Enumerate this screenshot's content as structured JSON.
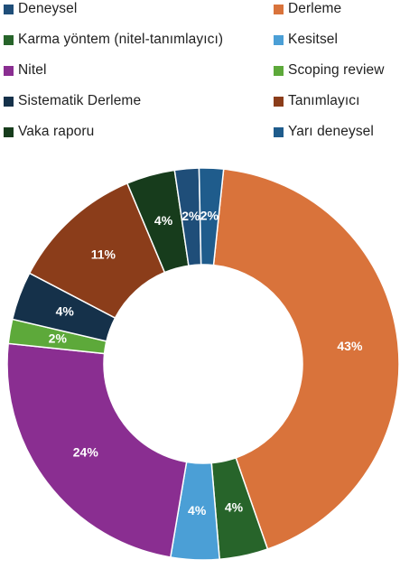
{
  "chart_data": {
    "type": "pie",
    "style": "donut",
    "series": [
      {
        "name": "Deneysel",
        "value": 2,
        "label": "2%",
        "color": "#1f4e79"
      },
      {
        "name": "Derleme",
        "value": 43,
        "label": "43%",
        "color": "#d9733b"
      },
      {
        "name": "Karma yöntem (nitel-tanımlayıcı)",
        "value": 4,
        "label": "4%",
        "color": "#27642a"
      },
      {
        "name": "Kesitsel",
        "value": 4,
        "label": "4%",
        "color": "#4b9fd6"
      },
      {
        "name": "Nitel",
        "value": 24,
        "label": "24%",
        "color": "#8a2e91"
      },
      {
        "name": "Scoping review",
        "value": 2,
        "label": "2%",
        "color": "#5da93a"
      },
      {
        "name": "Sistematik Derleme",
        "value": 4,
        "label": "4%",
        "color": "#15314a"
      },
      {
        "name": "Tanımlayıcı",
        "value": 11,
        "label": "11%",
        "color": "#8b3d1a"
      },
      {
        "name": "Vaka raporu",
        "value": 4,
        "label": "4%",
        "color": "#173c1c"
      },
      {
        "name": "Yarı deneysel",
        "value": 2,
        "label": "2%",
        "color": "#1f5c8c"
      }
    ],
    "slice_order": [
      "Derleme",
      "Karma yöntem (nitel-tanımlayıcı)",
      "Kesitsel",
      "Nitel",
      "Scoping review",
      "Sistematik Derleme",
      "Tanımlayıcı",
      "Vaka raporu",
      "Deneysel",
      "Yarı deneysel"
    ],
    "legend_position": "top",
    "legend_columns": 2
  }
}
